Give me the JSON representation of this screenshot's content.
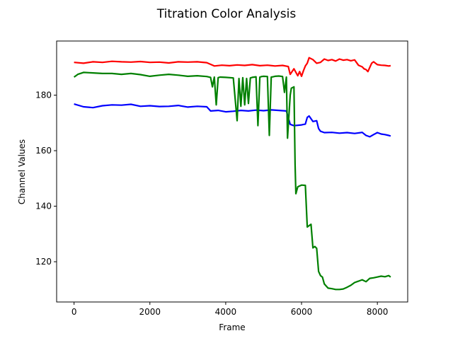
{
  "chart_data": {
    "type": "line",
    "title": "Titration Color Analysis",
    "xlabel": "Frame",
    "ylabel": "Channel Values",
    "xlim": [
      -460,
      8800
    ],
    "ylim": [
      105.5,
      199.5
    ],
    "xticks": [
      0,
      2000,
      4000,
      6000,
      8000
    ],
    "yticks": [
      120,
      140,
      160,
      180
    ],
    "grid": false,
    "legend": "none",
    "series": [
      {
        "color": "#ff0000",
        "x": [
          0,
          250,
          500,
          750,
          1000,
          1250,
          1500,
          1750,
          2000,
          2250,
          2500,
          2750,
          3000,
          3250,
          3500,
          3700,
          3900,
          4100,
          4300,
          4500,
          4700,
          4900,
          5100,
          5300,
          5500,
          5650,
          5700,
          5800,
          5900,
          5950,
          6000,
          6050,
          6100,
          6150,
          6200,
          6300,
          6400,
          6500,
          6600,
          6700,
          6800,
          6900,
          7000,
          7100,
          7200,
          7300,
          7400,
          7500,
          7600,
          7650,
          7700,
          7750,
          7800,
          7850,
          7900,
          8000,
          8100,
          8200,
          8300,
          8350
        ],
        "y": [
          191.8,
          191.5,
          192.0,
          191.8,
          192.2,
          192.0,
          191.9,
          192.1,
          191.8,
          191.9,
          191.6,
          192.0,
          191.9,
          192.0,
          191.7,
          190.5,
          190.8,
          190.6,
          190.9,
          190.7,
          191.0,
          190.6,
          190.8,
          190.5,
          190.7,
          190.3,
          187.5,
          189.5,
          187.0,
          188.5,
          186.8,
          188.8,
          190.5,
          191.5,
          193.5,
          192.8,
          191.5,
          191.8,
          193.0,
          192.5,
          192.8,
          192.3,
          193.0,
          192.6,
          192.8,
          192.4,
          192.7,
          190.8,
          190.2,
          189.5,
          189.2,
          188.5,
          190.0,
          191.5,
          192.0,
          191.0,
          190.8,
          190.7,
          190.5,
          190.6
        ]
      },
      {
        "color": "#0000ff",
        "x": [
          0,
          250,
          500,
          750,
          1000,
          1250,
          1500,
          1750,
          2000,
          2250,
          2500,
          2750,
          3000,
          3250,
          3500,
          3600,
          3800,
          4000,
          4200,
          4400,
          4600,
          4800,
          5000,
          5200,
          5400,
          5600,
          5700,
          5800,
          6000,
          6100,
          6150,
          6200,
          6300,
          6400,
          6450,
          6500,
          6600,
          6800,
          7000,
          7200,
          7400,
          7600,
          7700,
          7800,
          7900,
          8000,
          8100,
          8200,
          8300,
          8350
        ],
        "y": [
          176.8,
          175.8,
          175.5,
          176.2,
          176.5,
          176.4,
          176.7,
          176.0,
          176.2,
          175.9,
          176.0,
          176.3,
          175.7,
          176.0,
          175.8,
          174.3,
          174.5,
          174.0,
          174.2,
          174.5,
          174.3,
          174.6,
          174.4,
          174.7,
          174.5,
          174.3,
          169.5,
          169.0,
          169.3,
          169.6,
          172.0,
          172.5,
          170.5,
          170.8,
          168.0,
          167.0,
          166.5,
          166.6,
          166.3,
          166.5,
          166.2,
          166.6,
          165.5,
          165.0,
          165.8,
          166.5,
          166.0,
          165.8,
          165.5,
          165.3
        ]
      },
      {
        "color": "#008000",
        "x": [
          0,
          100,
          250,
          500,
          750,
          1000,
          1250,
          1500,
          1750,
          2000,
          2250,
          2500,
          2750,
          3000,
          3250,
          3500,
          3600,
          3650,
          3700,
          3750,
          3800,
          3850,
          4000,
          4200,
          4300,
          4350,
          4400,
          4450,
          4500,
          4550,
          4600,
          4650,
          4700,
          4800,
          4850,
          4900,
          4950,
          5000,
          5100,
          5150,
          5200,
          5250,
          5300,
          5400,
          5500,
          5550,
          5600,
          5630,
          5700,
          5730,
          5800,
          5830,
          5850,
          5900,
          6000,
          6100,
          6150,
          6200,
          6250,
          6300,
          6350,
          6400,
          6450,
          6500,
          6550,
          6600,
          6700,
          6800,
          6900,
          7000,
          7100,
          7200,
          7300,
          7400,
          7500,
          7600,
          7700,
          7800,
          7900,
          8000,
          8100,
          8200,
          8300,
          8350
        ],
        "y": [
          186.5,
          187.5,
          188.2,
          188.0,
          187.8,
          187.8,
          187.5,
          187.8,
          187.4,
          186.8,
          187.2,
          187.5,
          187.2,
          186.8,
          187.0,
          186.7,
          186.4,
          183.0,
          186.5,
          176.5,
          186.3,
          186.5,
          186.4,
          186.2,
          170.8,
          186.0,
          176.0,
          186.3,
          176.5,
          186.0,
          177.0,
          186.2,
          186.4,
          186.6,
          169.0,
          186.5,
          186.7,
          186.8,
          186.7,
          165.5,
          186.5,
          186.6,
          186.8,
          186.9,
          186.7,
          181.0,
          186.5,
          164.5,
          180.0,
          182.5,
          183.0,
          155.0,
          144.5,
          147.0,
          147.6,
          147.5,
          132.5,
          133.0,
          133.5,
          125.0,
          125.5,
          124.8,
          116.5,
          115.0,
          114.5,
          112.0,
          110.5,
          110.3,
          110.0,
          110.0,
          110.2,
          110.8,
          111.5,
          112.5,
          113.0,
          113.5,
          112.8,
          114.0,
          114.2,
          114.5,
          114.8,
          114.6,
          115.0,
          114.5
        ]
      }
    ]
  }
}
